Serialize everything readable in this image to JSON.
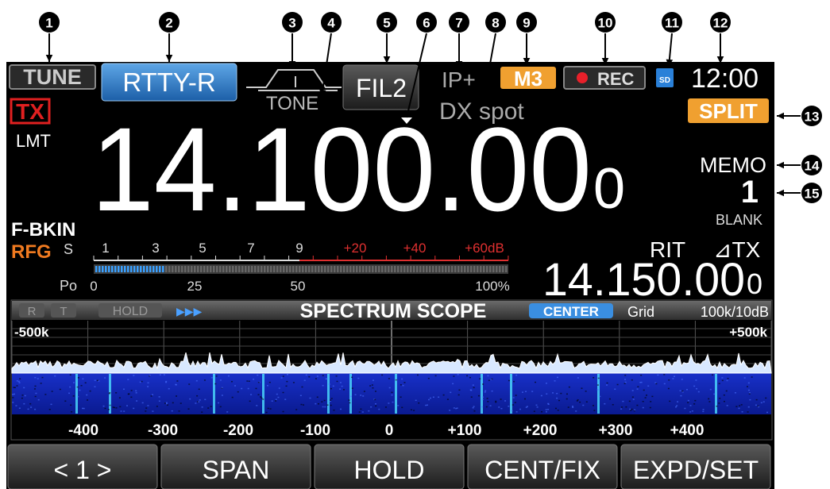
{
  "callouts": [
    "1",
    "2",
    "3",
    "4",
    "5",
    "6",
    "7",
    "8",
    "9",
    "10",
    "11",
    "12",
    "13",
    "14",
    "15"
  ],
  "top_bar": {
    "tune": "TUNE",
    "mode": "RTTY-R",
    "tone": "TONE",
    "filter": "FIL2",
    "ip": "IP+",
    "memory_channel": "M3",
    "rec": "REC",
    "sd": "SD",
    "clock": "12:00"
  },
  "status": {
    "tx": "TX",
    "lmt": "LMT",
    "dx_spot": "DX spot",
    "split": "SPLIT",
    "memo": "MEMO",
    "memo_number": "1",
    "blank": "BLANK",
    "break_in": "F-BKIN",
    "rfg": "RFG"
  },
  "frequency": {
    "main": "14.100.00",
    "main_last_digit": "0",
    "rit": "RIT",
    "delta_tx": "⊿TX",
    "sub": "14.150.00",
    "sub_last_digit": "0"
  },
  "meter": {
    "s_label": "S",
    "s_scale": [
      "1",
      "3",
      "5",
      "7",
      "9",
      "+20",
      "+40",
      "+60dB"
    ],
    "po_label": "Po",
    "po_scale": [
      "0",
      "25",
      "50",
      "100%"
    ]
  },
  "scope": {
    "r": "R",
    "t": "T",
    "hold": "HOLD",
    "arrows": "▶▶▶",
    "title": "SPECTRUM SCOPE",
    "center": "CENTER",
    "grid": "Grid",
    "grid_value": "100k/10dB",
    "left_edge": "-500k",
    "right_edge": "+500k",
    "x_labels": [
      "-400",
      "-300",
      "-200",
      "-100",
      "0",
      "+100",
      "+200",
      "+300",
      "+400"
    ]
  },
  "buttons": [
    "< 1 >",
    "SPAN",
    "HOLD",
    "CENT/FIX",
    "EXPD/SET"
  ]
}
